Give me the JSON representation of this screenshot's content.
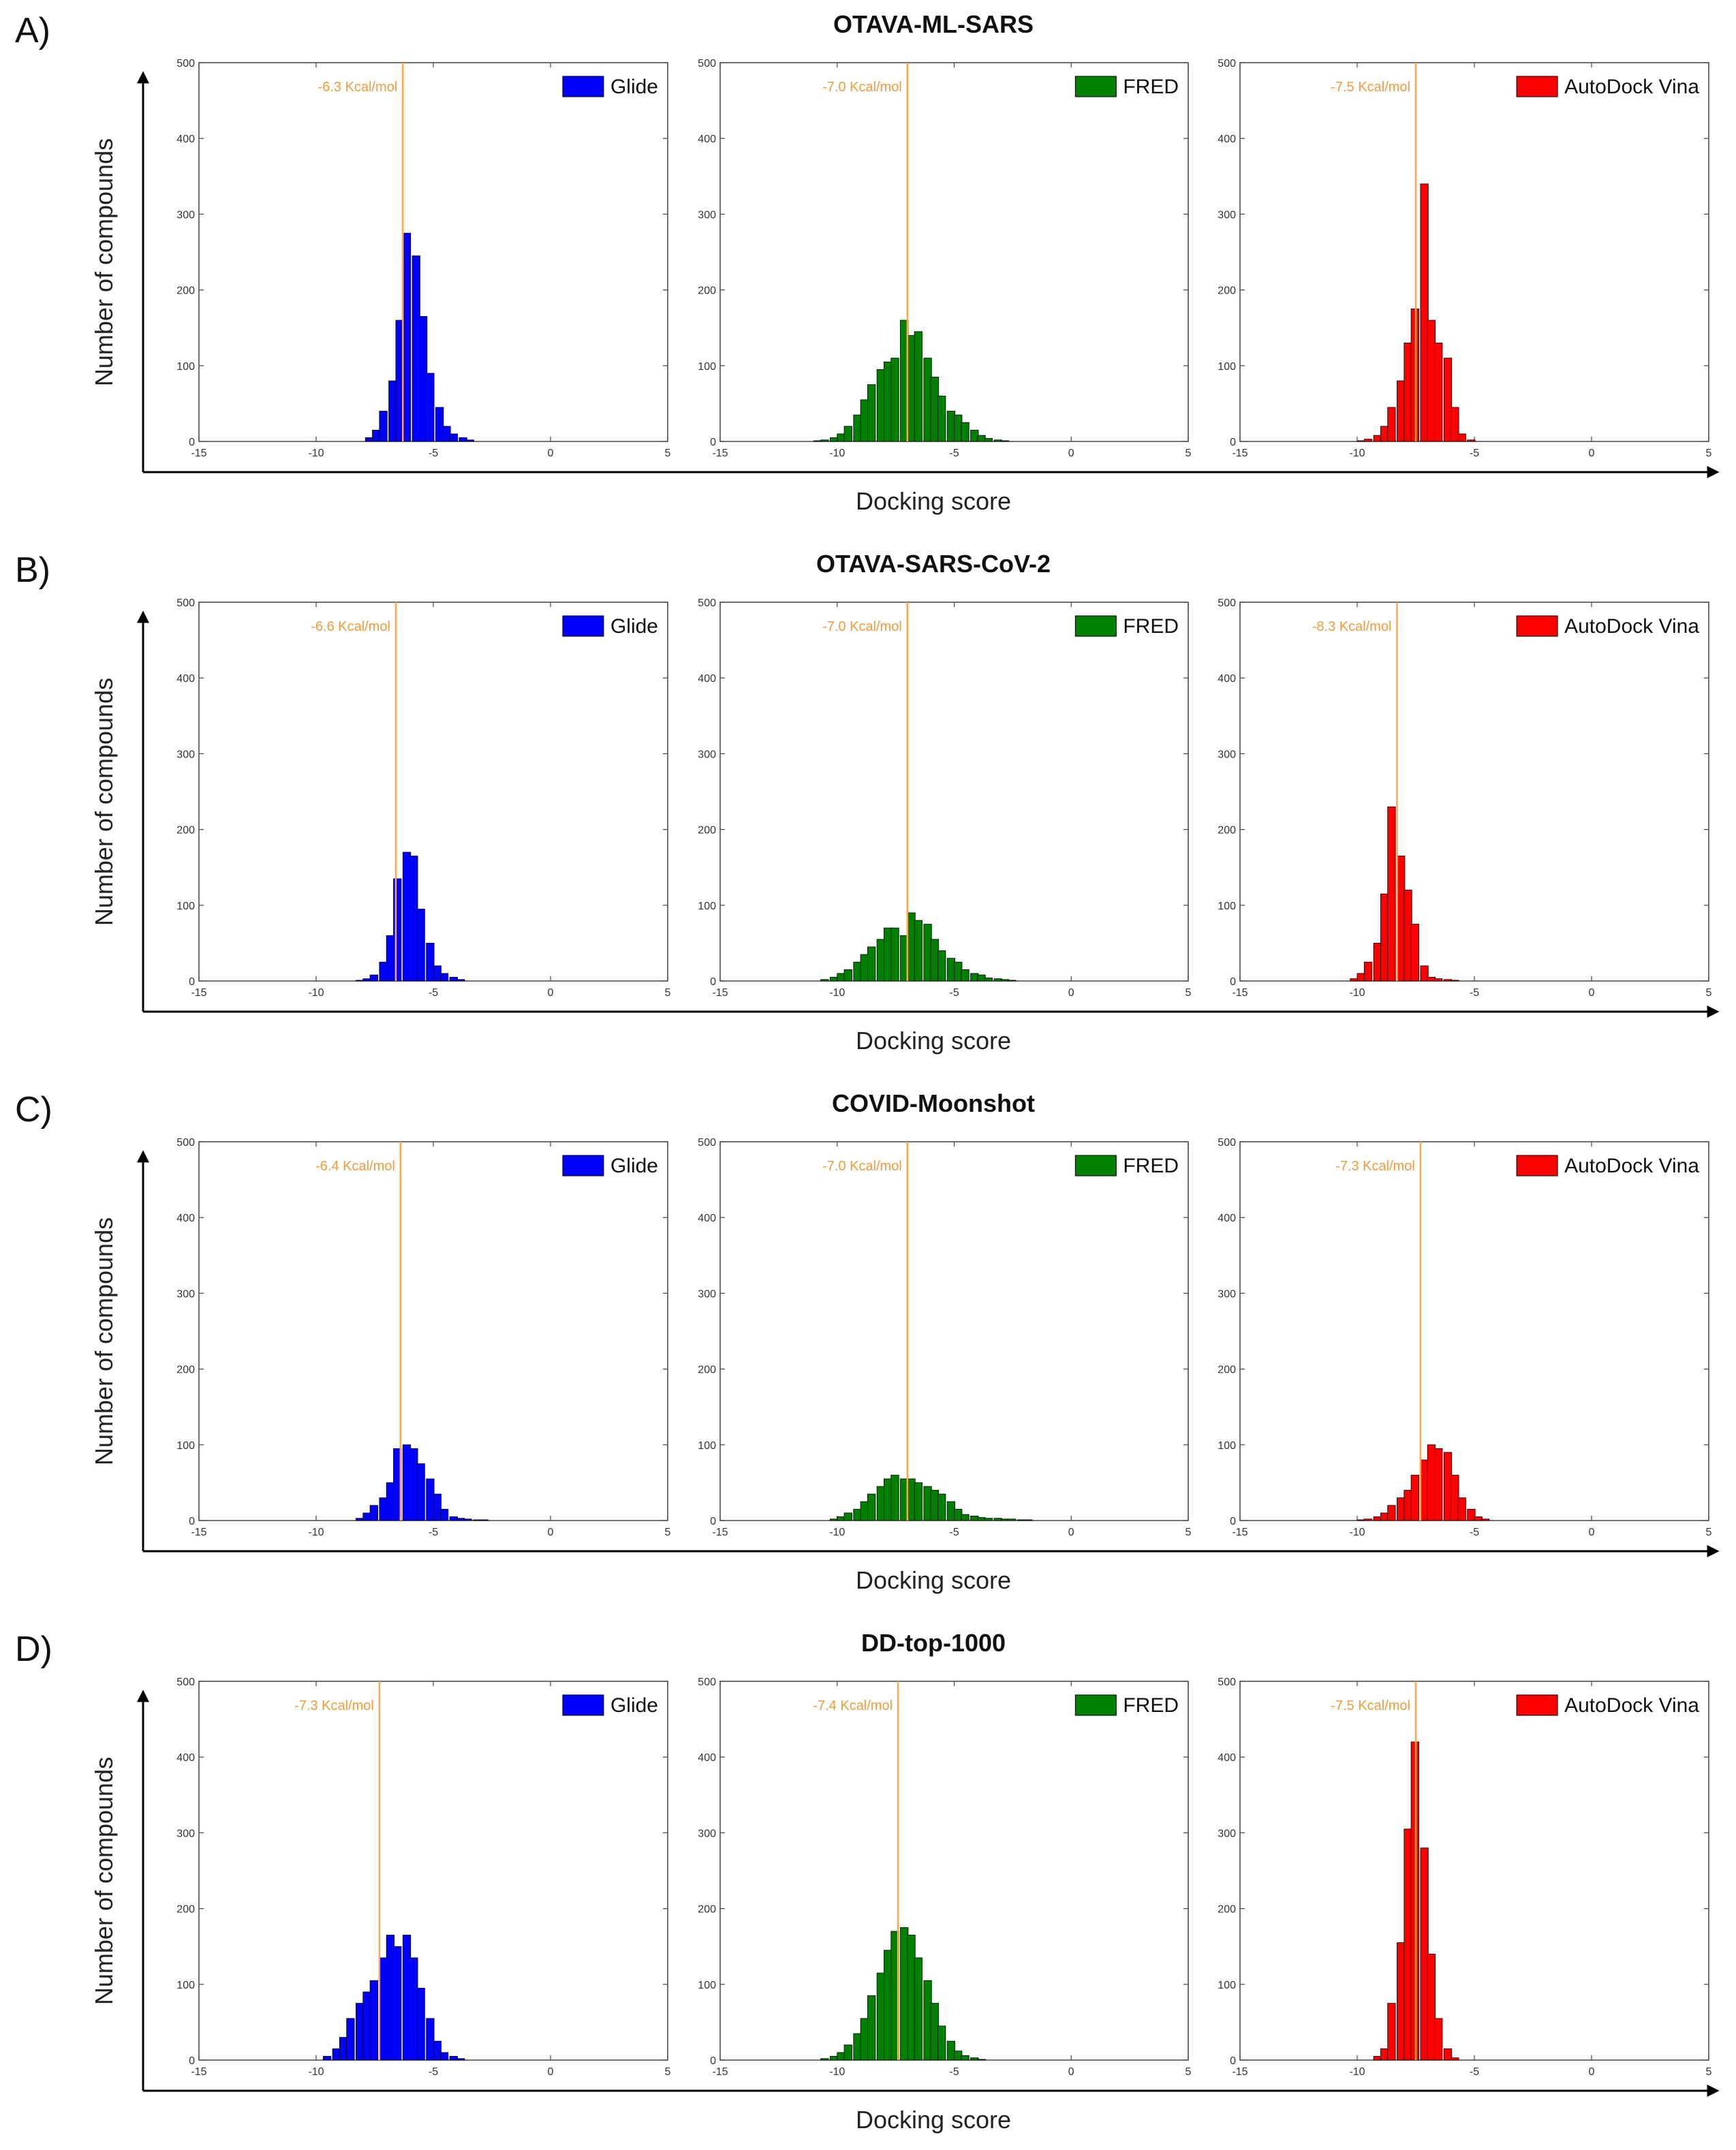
{
  "axis_labels": {
    "ylabel": "Number of compounds",
    "xlabel": "Docking score"
  },
  "colors": {
    "glide": "#0000ff",
    "fred": "#008000",
    "vina": "#ff0000",
    "median_line": "#ffa64d",
    "median_text": "#f59a3c"
  },
  "panels": [
    {
      "letter": "A)",
      "title": "OTAVA-ML-SARS"
    },
    {
      "letter": "B)",
      "title": "OTAVA-SARS-CoV-2"
    },
    {
      "letter": "C)",
      "title": "COVID-Moonshot"
    },
    {
      "letter": "D)",
      "title": "DD-top-1000"
    }
  ],
  "chart_data": [
    {
      "type": "bar",
      "panel": "A",
      "legend": "Glide",
      "color": "#0000ff",
      "median_label": "-6.3 Kcal/mol",
      "median": -6.3,
      "xlim": [
        -15,
        5
      ],
      "ylim": [
        0,
        500
      ],
      "xticks": [
        -15,
        -10,
        -5,
        0,
        5
      ],
      "yticks": [
        0,
        100,
        200,
        300,
        400,
        500
      ],
      "bin_width": 0.333,
      "bin_start": [
        -7.9,
        -7.6,
        -7.3,
        -6.9,
        -6.6,
        -6.3,
        -5.9,
        -5.6,
        -5.3,
        -4.9,
        -4.6,
        -4.3,
        -3.9,
        -3.6
      ],
      "values": [
        5,
        15,
        40,
        80,
        160,
        275,
        245,
        165,
        90,
        45,
        20,
        10,
        5,
        2
      ]
    },
    {
      "type": "bar",
      "panel": "A",
      "legend": "FRED",
      "color": "#008000",
      "median_label": "-7.0 Kcal/mol",
      "median": -7.0,
      "xlim": [
        -15,
        5
      ],
      "ylim": [
        0,
        500
      ],
      "xticks": [
        -15,
        -10,
        -5,
        0,
        5
      ],
      "yticks": [
        0,
        100,
        200,
        300,
        400,
        500
      ],
      "bin_width": 0.333,
      "bin_start": [
        -11.0,
        -10.7,
        -10.3,
        -10.0,
        -9.7,
        -9.3,
        -9.0,
        -8.7,
        -8.3,
        -8.0,
        -7.7,
        -7.3,
        -7.0,
        -6.7,
        -6.3,
        -6.0,
        -5.7,
        -5.3,
        -5.0,
        -4.7,
        -4.3,
        -4.0,
        -3.7,
        -3.3,
        -3.0
      ],
      "values": [
        1,
        2,
        5,
        10,
        20,
        35,
        55,
        75,
        95,
        105,
        110,
        160,
        140,
        145,
        110,
        85,
        60,
        40,
        35,
        25,
        15,
        8,
        4,
        2,
        1
      ]
    },
    {
      "type": "bar",
      "panel": "A",
      "legend": "AutoDock Vina",
      "color": "#ff0000",
      "median_label": "-7.5 Kcal/mol",
      "median": -7.5,
      "xlim": [
        -15,
        5
      ],
      "ylim": [
        0,
        500
      ],
      "xticks": [
        -15,
        -10,
        -5,
        0,
        5
      ],
      "yticks": [
        0,
        100,
        200,
        300,
        400,
        500
      ],
      "bin_width": 0.333,
      "bin_start": [
        -10.0,
        -9.7,
        -9.3,
        -9.0,
        -8.7,
        -8.3,
        -8.0,
        -7.7,
        -7.3,
        -7.0,
        -6.7,
        -6.3,
        -6.0,
        -5.7,
        -5.3
      ],
      "values": [
        1,
        3,
        8,
        20,
        45,
        80,
        130,
        175,
        340,
        160,
        130,
        110,
        45,
        10,
        2
      ]
    },
    {
      "type": "bar",
      "panel": "B",
      "legend": "Glide",
      "color": "#0000ff",
      "median_label": "-6.6 Kcal/mol",
      "median": -6.6,
      "xlim": [
        -15,
        5
      ],
      "ylim": [
        0,
        500
      ],
      "xticks": [
        -15,
        -10,
        -5,
        0,
        5
      ],
      "yticks": [
        0,
        100,
        200,
        300,
        400,
        500
      ],
      "bin_width": 0.333,
      "bin_start": [
        -8.3,
        -8.0,
        -7.7,
        -7.3,
        -7.0,
        -6.7,
        -6.3,
        -6.0,
        -5.7,
        -5.3,
        -5.0,
        -4.7,
        -4.3,
        -4.0
      ],
      "values": [
        1,
        3,
        8,
        25,
        60,
        135,
        170,
        165,
        95,
        50,
        20,
        10,
        5,
        2
      ]
    },
    {
      "type": "bar",
      "panel": "B",
      "legend": "FRED",
      "color": "#008000",
      "median_label": "-7.0 Kcal/mol",
      "median": -7.0,
      "xlim": [
        -15,
        5
      ],
      "ylim": [
        0,
        500
      ],
      "xticks": [
        -15,
        -10,
        -5,
        0,
        5
      ],
      "yticks": [
        0,
        100,
        200,
        300,
        400,
        500
      ],
      "bin_width": 0.333,
      "bin_start": [
        -10.7,
        -10.3,
        -10.0,
        -9.7,
        -9.3,
        -9.0,
        -8.7,
        -8.3,
        -8.0,
        -7.7,
        -7.3,
        -7.0,
        -6.7,
        -6.3,
        -6.0,
        -5.7,
        -5.3,
        -5.0,
        -4.7,
        -4.3,
        -4.0,
        -3.7,
        -3.3,
        -3.0,
        -2.7
      ],
      "values": [
        2,
        5,
        10,
        15,
        25,
        35,
        45,
        55,
        70,
        70,
        60,
        90,
        80,
        75,
        55,
        40,
        30,
        25,
        15,
        10,
        8,
        4,
        3,
        2,
        1
      ]
    },
    {
      "type": "bar",
      "panel": "B",
      "legend": "AutoDock Vina",
      "color": "#ff0000",
      "median_label": "-8.3 Kcal/mol",
      "median": -8.3,
      "xlim": [
        -15,
        5
      ],
      "ylim": [
        0,
        500
      ],
      "xticks": [
        -15,
        -10,
        -5,
        0,
        5
      ],
      "yticks": [
        0,
        100,
        200,
        300,
        400,
        500
      ],
      "bin_width": 0.333,
      "bin_start": [
        -10.3,
        -10.0,
        -9.7,
        -9.3,
        -9.0,
        -8.7,
        -8.3,
        -8.0,
        -7.7,
        -7.3,
        -7.0,
        -6.7,
        -6.3,
        -6.0
      ],
      "values": [
        3,
        10,
        25,
        50,
        115,
        230,
        165,
        120,
        75,
        20,
        5,
        3,
        2,
        1
      ]
    },
    {
      "type": "bar",
      "panel": "C",
      "legend": "Glide",
      "color": "#0000ff",
      "median_label": "-6.4 Kcal/mol",
      "median": -6.4,
      "xlim": [
        -15,
        5
      ],
      "ylim": [
        0,
        500
      ],
      "xticks": [
        -15,
        -10,
        -5,
        0,
        5
      ],
      "yticks": [
        0,
        100,
        200,
        300,
        400,
        500
      ],
      "bin_width": 0.333,
      "bin_start": [
        -8.3,
        -8.0,
        -7.7,
        -7.3,
        -7.0,
        -6.7,
        -6.3,
        -6.0,
        -5.7,
        -5.3,
        -5.0,
        -4.7,
        -4.3,
        -4.0,
        -3.7,
        -3.3,
        -3.0
      ],
      "values": [
        3,
        10,
        20,
        30,
        50,
        95,
        100,
        95,
        75,
        55,
        35,
        15,
        5,
        3,
        2,
        1,
        1
      ]
    },
    {
      "type": "bar",
      "panel": "C",
      "legend": "FRED",
      "color": "#008000",
      "median_label": "-7.0 Kcal/mol",
      "median": -7.0,
      "xlim": [
        -15,
        5
      ],
      "ylim": [
        0,
        500
      ],
      "xticks": [
        -15,
        -10,
        -5,
        0,
        5
      ],
      "yticks": [
        0,
        100,
        200,
        300,
        400,
        500
      ],
      "bin_width": 0.333,
      "bin_start": [
        -10.3,
        -10.0,
        -9.7,
        -9.3,
        -9.0,
        -8.7,
        -8.3,
        -8.0,
        -7.7,
        -7.3,
        -7.0,
        -6.7,
        -6.3,
        -6.0,
        -5.7,
        -5.3,
        -5.0,
        -4.7,
        -4.3,
        -4.0,
        -3.7,
        -3.3,
        -3.0,
        -2.7,
        -2.3,
        -2.0
      ],
      "values": [
        2,
        5,
        10,
        15,
        25,
        35,
        45,
        55,
        60,
        55,
        55,
        50,
        45,
        40,
        35,
        25,
        15,
        8,
        6,
        4,
        3,
        3,
        2,
        2,
        1,
        1
      ]
    },
    {
      "type": "bar",
      "panel": "C",
      "legend": "AutoDock Vina",
      "color": "#ff0000",
      "median_label": "-7.3 Kcal/mol",
      "median": -7.3,
      "xlim": [
        -15,
        5
      ],
      "ylim": [
        0,
        500
      ],
      "xticks": [
        -15,
        -10,
        -5,
        0,
        5
      ],
      "yticks": [
        0,
        100,
        200,
        300,
        400,
        500
      ],
      "bin_width": 0.333,
      "bin_start": [
        -10.0,
        -9.7,
        -9.3,
        -9.0,
        -8.7,
        -8.3,
        -8.0,
        -7.7,
        -7.3,
        -7.0,
        -6.7,
        -6.3,
        -6.0,
        -5.7,
        -5.3,
        -5.0,
        -4.7
      ],
      "values": [
        1,
        2,
        5,
        10,
        20,
        30,
        40,
        60,
        80,
        100,
        95,
        90,
        60,
        30,
        15,
        5,
        2
      ]
    },
    {
      "type": "bar",
      "panel": "D",
      "legend": "Glide",
      "color": "#0000ff",
      "median_label": "-7.3 Kcal/mol",
      "median": -7.3,
      "xlim": [
        -15,
        5
      ],
      "ylim": [
        0,
        500
      ],
      "xticks": [
        -15,
        -10,
        -5,
        0,
        5
      ],
      "yticks": [
        0,
        100,
        200,
        300,
        400,
        500
      ],
      "bin_width": 0.333,
      "bin_start": [
        -9.7,
        -9.3,
        -9.0,
        -8.7,
        -8.3,
        -8.0,
        -7.7,
        -7.3,
        -7.0,
        -6.7,
        -6.3,
        -6.0,
        -5.7,
        -5.3,
        -5.0,
        -4.7,
        -4.3,
        -4.0
      ],
      "values": [
        5,
        15,
        30,
        55,
        75,
        90,
        105,
        135,
        165,
        150,
        165,
        135,
        95,
        55,
        25,
        10,
        5,
        2
      ]
    },
    {
      "type": "bar",
      "panel": "D",
      "legend": "FRED",
      "color": "#008000",
      "median_label": "-7.4 Kcal/mol",
      "median": -7.4,
      "xlim": [
        -15,
        5
      ],
      "ylim": [
        0,
        500
      ],
      "xticks": [
        -15,
        -10,
        -5,
        0,
        5
      ],
      "yticks": [
        0,
        100,
        200,
        300,
        400,
        500
      ],
      "bin_width": 0.333,
      "bin_start": [
        -10.7,
        -10.3,
        -10.0,
        -9.7,
        -9.3,
        -9.0,
        -8.7,
        -8.3,
        -8.0,
        -7.7,
        -7.3,
        -7.0,
        -6.7,
        -6.3,
        -6.0,
        -5.7,
        -5.3,
        -5.0,
        -4.7,
        -4.3,
        -4.0
      ],
      "values": [
        2,
        5,
        10,
        20,
        35,
        55,
        85,
        115,
        145,
        170,
        175,
        165,
        135,
        105,
        75,
        45,
        25,
        12,
        6,
        3,
        1
      ]
    },
    {
      "type": "bar",
      "panel": "D",
      "legend": "AutoDock Vina",
      "color": "#ff0000",
      "median_label": "-7.5 Kcal/mol",
      "median": -7.5,
      "xlim": [
        -15,
        5
      ],
      "ylim": [
        0,
        500
      ],
      "xticks": [
        -15,
        -10,
        -5,
        0,
        5
      ],
      "yticks": [
        0,
        100,
        200,
        300,
        400,
        500
      ],
      "bin_width": 0.333,
      "bin_start": [
        -9.3,
        -9.0,
        -8.7,
        -8.3,
        -8.0,
        -7.7,
        -7.3,
        -7.0,
        -6.7,
        -6.3,
        -6.0
      ],
      "values": [
        5,
        15,
        75,
        155,
        305,
        420,
        280,
        140,
        55,
        15,
        3
      ]
    }
  ]
}
